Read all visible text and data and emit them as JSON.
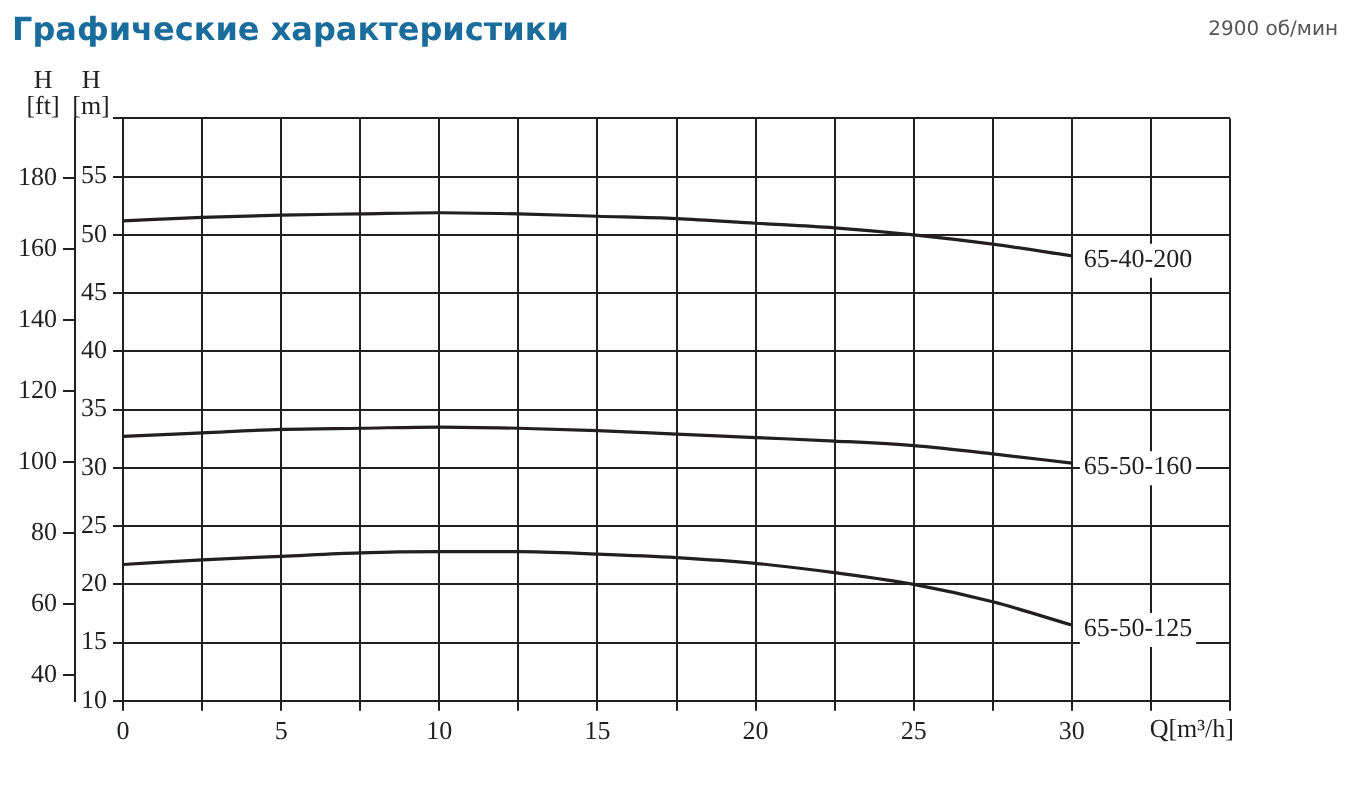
{
  "chart_data": {
    "type": "line",
    "title": "Графические характеристики",
    "annotations": [
      "2900 об/мин"
    ],
    "xlabel": "Q[m³/h]",
    "ylabel": "H [m]",
    "y2label": "H [ft]",
    "x": [
      0,
      2.5,
      5,
      7.5,
      10,
      12.5,
      15,
      17.5,
      20,
      22.5,
      25,
      27.5,
      30
    ],
    "series": [
      {
        "name": "65-40-200",
        "color": "#231f20",
        "values": [
          51.2,
          51.5,
          51.7,
          51.8,
          51.9,
          51.8,
          51.6,
          51.4,
          51.0,
          50.6,
          50.0,
          49.2,
          48.2
        ]
      },
      {
        "name": "65-50-160",
        "color": "#231f20",
        "values": [
          32.7,
          33.0,
          33.3,
          33.4,
          33.5,
          33.4,
          33.2,
          32.9,
          32.6,
          32.3,
          31.9,
          31.2,
          30.4
        ]
      },
      {
        "name": "65-50-125",
        "color": "#231f20",
        "values": [
          21.7,
          22.1,
          22.4,
          22.7,
          22.8,
          22.8,
          22.6,
          22.3,
          21.8,
          21.0,
          20.0,
          18.5,
          16.5
        ]
      }
    ],
    "xlim": [
      0,
      35
    ],
    "xticks": [
      0,
      {
        "value": 2.5,
        "label": null
      },
      5,
      {
        "value": 7.5,
        "label": null
      },
      10,
      {
        "value": 12.5,
        "label": null
      },
      15,
      {
        "value": 17.5,
        "label": null
      },
      20,
      {
        "value": 22.5,
        "label": null
      },
      25,
      {
        "value": 27.5,
        "label": null
      },
      30,
      {
        "value": 32.5,
        "label": null
      },
      {
        "value": 35,
        "label": null
      }
    ],
    "ylim": [
      10,
      60
    ],
    "yticks": [
      10,
      15,
      20,
      25,
      30,
      35,
      40,
      45,
      50,
      55,
      {
        "value": 60,
        "label": null
      }
    ],
    "y2lim": [
      32.8,
      196.9
    ],
    "y2ticks": [
      40,
      60,
      80,
      100,
      120,
      140,
      160,
      180
    ],
    "grid": true,
    "legend": false,
    "marker": "none",
    "line_style": "solid"
  }
}
